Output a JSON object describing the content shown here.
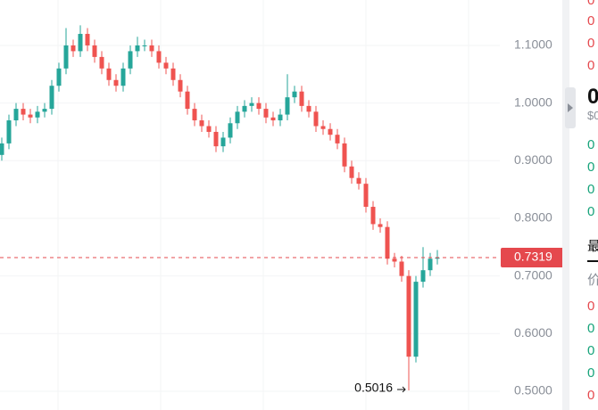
{
  "chart_data": {
    "type": "candlestick",
    "open": [
      0.91,
      0.93,
      0.97,
      0.99,
      0.98,
      0.975,
      0.985,
      0.99,
      1.03,
      1.06,
      1.1,
      1.09,
      1.12,
      1.1,
      1.08,
      1.06,
      1.04,
      1.03,
      1.06,
      1.09,
      1.1,
      1.1,
      1.09,
      1.07,
      1.06,
      1.04,
      1.02,
      0.99,
      0.97,
      0.96,
      0.95,
      0.925,
      0.94,
      0.965,
      0.985,
      0.995,
      1.0,
      0.99,
      0.975,
      0.97,
      0.98,
      1.01,
      1.02,
      0.995,
      0.985,
      0.96,
      0.955,
      0.945,
      0.93,
      0.89,
      0.87,
      0.86,
      0.82,
      0.79,
      0.785,
      0.73,
      0.725,
      0.7,
      0.56,
      0.69,
      0.71,
      0.73
    ],
    "high": [
      0.94,
      0.98,
      1.0,
      1.0,
      0.99,
      0.995,
      1.0,
      1.04,
      1.07,
      1.13,
      1.11,
      1.135,
      1.13,
      1.11,
      1.09,
      1.07,
      1.05,
      1.07,
      1.1,
      1.115,
      1.11,
      1.11,
      1.1,
      1.08,
      1.07,
      1.05,
      1.03,
      1.0,
      0.98,
      0.97,
      0.96,
      0.95,
      0.975,
      0.995,
      1.005,
      1.01,
      1.01,
      1.0,
      0.985,
      0.99,
      1.05,
      1.03,
      1.03,
      1.005,
      0.995,
      0.97,
      0.965,
      0.955,
      0.94,
      0.9,
      0.88,
      0.87,
      0.83,
      0.8,
      0.795,
      0.74,
      0.735,
      0.71,
      0.7,
      0.75,
      0.74,
      0.745
    ],
    "low": [
      0.9,
      0.92,
      0.96,
      0.97,
      0.965,
      0.965,
      0.975,
      0.98,
      1.02,
      1.05,
      1.08,
      1.08,
      1.09,
      1.07,
      1.05,
      1.03,
      1.02,
      1.02,
      1.05,
      1.08,
      1.09,
      1.08,
      1.06,
      1.05,
      1.03,
      1.01,
      0.98,
      0.96,
      0.95,
      0.94,
      0.915,
      0.915,
      0.93,
      0.955,
      0.975,
      0.985,
      0.98,
      0.965,
      0.96,
      0.96,
      0.97,
      1.0,
      0.985,
      0.975,
      0.95,
      0.945,
      0.935,
      0.92,
      0.88,
      0.86,
      0.85,
      0.81,
      0.78,
      0.775,
      0.72,
      0.715,
      0.69,
      0.5016,
      0.55,
      0.68,
      0.7,
      0.72
    ],
    "close": [
      0.93,
      0.97,
      0.99,
      0.98,
      0.975,
      0.985,
      0.99,
      1.03,
      1.06,
      1.1,
      1.09,
      1.12,
      1.1,
      1.08,
      1.06,
      1.04,
      1.03,
      1.06,
      1.09,
      1.1,
      1.1,
      1.09,
      1.07,
      1.06,
      1.04,
      1.02,
      0.99,
      0.97,
      0.96,
      0.95,
      0.925,
      0.94,
      0.965,
      0.985,
      0.995,
      1.0,
      0.99,
      0.975,
      0.97,
      0.98,
      1.01,
      1.02,
      0.995,
      0.985,
      0.96,
      0.955,
      0.945,
      0.93,
      0.89,
      0.87,
      0.86,
      0.82,
      0.79,
      0.785,
      0.73,
      0.725,
      0.7,
      0.56,
      0.69,
      0.71,
      0.73,
      0.7319
    ],
    "up_color": "#26a69a",
    "down_color": "#ef5350",
    "ylim": [
      0.4675,
      1.1788
    ],
    "yticks": [
      {
        "value": 0.5,
        "label": "0.5000"
      },
      {
        "value": 0.6,
        "label": "0.6000"
      },
      {
        "value": 0.7,
        "label": "0.7000"
      },
      {
        "value": 0.8,
        "label": "0.8000"
      },
      {
        "value": 0.9,
        "label": "0.9000"
      },
      {
        "value": 1.0,
        "label": "1.0000"
      },
      {
        "value": 1.1,
        "label": "1.1000"
      }
    ],
    "grid": true,
    "last_price": 0.7319,
    "last_price_color": "#e5484d",
    "annotations": [
      {
        "text": "0.5016"
      }
    ]
  },
  "side_panel": [
    {
      "text": "0",
      "color": "#e5484d"
    },
    {
      "text": "0",
      "color": "#e5484d"
    },
    {
      "text": "0",
      "color": "#e5484d"
    },
    {
      "text": "0",
      "color": "#e5484d"
    },
    {
      "text": "0",
      "color": "#111111"
    },
    {
      "text": "$0",
      "color": "#8a8f98"
    },
    {
      "text": "0",
      "color": "#16a37a"
    },
    {
      "text": "0",
      "color": "#16a37a"
    },
    {
      "text": "0",
      "color": "#16a37a"
    },
    {
      "text": "0",
      "color": "#16a37a"
    },
    {
      "text": "最",
      "color": "#111111"
    },
    {
      "text": "价",
      "color": "#8a8f98"
    },
    {
      "text": "0",
      "color": "#e5484d"
    },
    {
      "text": "0",
      "color": "#16a37a"
    },
    {
      "text": "0",
      "color": "#16a37a"
    },
    {
      "text": "0",
      "color": "#16a37a"
    },
    {
      "text": "0",
      "color": "#e5484d"
    }
  ]
}
